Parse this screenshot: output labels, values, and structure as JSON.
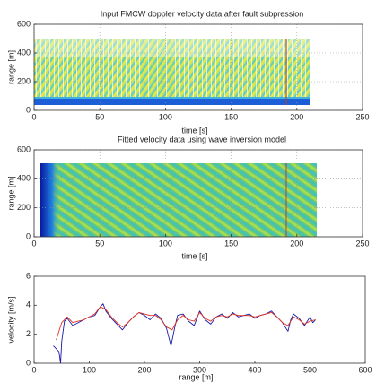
{
  "chart_data": [
    {
      "type": "heatmap",
      "title": "Input FMCW doppler velocity data after fault subpression",
      "xlabel": "time [s]",
      "ylabel": "range [m]",
      "xlim": [
        0,
        250
      ],
      "ylim": [
        0,
        600
      ],
      "xticks": [
        0,
        50,
        100,
        150,
        200,
        250
      ],
      "yticks": [
        0,
        200,
        400,
        600
      ],
      "grid": true
    },
    {
      "type": "heatmap",
      "title": "Fitted velocity data using wave inversion model",
      "xlabel": "time [s]",
      "ylabel": "range [m]",
      "xlim": [
        0,
        250
      ],
      "ylim": [
        0,
        600
      ],
      "xticks": [
        0,
        50,
        100,
        150,
        200,
        250
      ],
      "yticks": [
        0,
        200,
        400,
        600
      ],
      "grid": true
    },
    {
      "type": "line",
      "xlabel": "range [m]",
      "ylabel": "velocity [m/s]",
      "xlim": [
        0,
        600
      ],
      "ylim": [
        0,
        6
      ],
      "xticks": [
        0,
        100,
        200,
        300,
        400,
        500,
        600
      ],
      "yticks": [
        0,
        2,
        4,
        6
      ],
      "grid": false,
      "series": [
        {
          "color": "#1a1aa8",
          "x": [
            35,
            40,
            45,
            48,
            50,
            55,
            60,
            70,
            80,
            90,
            100,
            110,
            120,
            125,
            130,
            140,
            150,
            160,
            170,
            180,
            190,
            200,
            210,
            220,
            230,
            240,
            248,
            255,
            260,
            270,
            280,
            290,
            300,
            310,
            320,
            330,
            340,
            350,
            360,
            370,
            380,
            390,
            400,
            410,
            420,
            430,
            440,
            450,
            460,
            465,
            470,
            480,
            490,
            500,
            505,
            510
          ],
          "values": [
            1.2,
            1.0,
            0.8,
            0.0,
            1.5,
            2.9,
            3.1,
            2.6,
            2.8,
            3.0,
            3.2,
            3.3,
            3.9,
            4.1,
            3.6,
            3.1,
            2.7,
            2.3,
            2.8,
            3.2,
            3.5,
            3.3,
            3.0,
            3.4,
            3.1,
            2.4,
            1.2,
            2.5,
            3.3,
            3.4,
            2.9,
            2.6,
            3.6,
            3.0,
            2.7,
            3.2,
            3.4,
            3.1,
            3.5,
            3.2,
            3.3,
            3.4,
            3.1,
            3.3,
            3.4,
            3.6,
            3.2,
            2.8,
            2.2,
            3.0,
            3.4,
            3.1,
            2.6,
            3.2,
            2.8,
            3.0
          ]
        },
        {
          "color": "#e03020",
          "x": [
            40,
            50,
            60,
            70,
            80,
            90,
            100,
            110,
            120,
            130,
            140,
            150,
            160,
            170,
            180,
            190,
            200,
            210,
            220,
            230,
            240,
            250,
            260,
            270,
            280,
            290,
            300,
            310,
            320,
            330,
            340,
            350,
            360,
            370,
            380,
            390,
            400,
            410,
            420,
            430,
            440,
            450,
            460,
            470,
            480,
            490,
            500,
            510
          ],
          "values": [
            1.6,
            2.8,
            3.2,
            2.8,
            2.9,
            3.0,
            3.2,
            3.4,
            3.9,
            3.7,
            3.2,
            2.8,
            2.5,
            2.8,
            3.2,
            3.5,
            3.4,
            3.3,
            3.3,
            3.0,
            2.5,
            2.3,
            3.0,
            3.3,
            3.0,
            2.9,
            3.5,
            3.1,
            2.9,
            3.2,
            3.3,
            3.2,
            3.4,
            3.3,
            3.3,
            3.3,
            3.2,
            3.3,
            3.4,
            3.5,
            3.2,
            2.8,
            2.6,
            3.2,
            3.0,
            2.7,
            2.9,
            3.0
          ]
        }
      ]
    }
  ]
}
